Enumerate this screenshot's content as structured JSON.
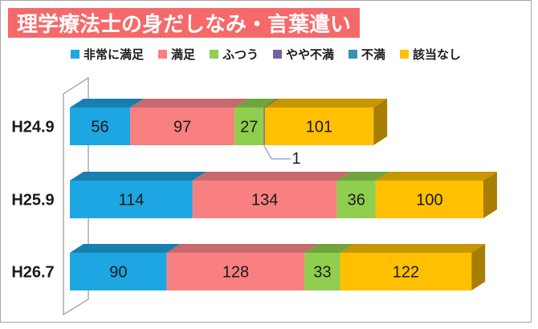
{
  "title": {
    "text": "理学療法士の身だしなみ・言葉遣い",
    "bg_color": "#F5696B",
    "text_color": "#FFFFFF"
  },
  "legend": {
    "items": [
      {
        "label": "非常に満足",
        "color": "#1EA6E2"
      },
      {
        "label": "満足",
        "color": "#F88081"
      },
      {
        "label": "ふつう",
        "color": "#8FCE4E"
      },
      {
        "label": "やや不満",
        "color": "#7560A5"
      },
      {
        "label": "不満",
        "color": "#3690B0"
      },
      {
        "label": "該当なし",
        "color": "#FEC000"
      }
    ]
  },
  "chart_data": {
    "type": "bar",
    "orientation": "horizontal",
    "stacked": true,
    "style": "3d",
    "grid": false,
    "axis_labels_hidden": true,
    "legend_position": "top",
    "categories": [
      "H24.9",
      "H25.9",
      "H26.7"
    ],
    "series": [
      {
        "name": "非常に満足",
        "color": "#1EA6E2",
        "top_color": "#177FB0",
        "values": [
          56,
          114,
          90
        ]
      },
      {
        "name": "満足",
        "color": "#F88081",
        "top_color": "#C66A6E",
        "values": [
          97,
          134,
          128
        ]
      },
      {
        "name": "ふつう",
        "color": "#8FCE4E",
        "top_color": "#71A43C",
        "values": [
          27,
          36,
          33
        ]
      },
      {
        "name": "やや不満",
        "color": "#7560A5",
        "top_color": "#594783",
        "values": [
          1,
          0,
          0
        ]
      },
      {
        "name": "不満",
        "color": "#3690B0",
        "top_color": "#2B7290",
        "values": [
          0,
          0,
          0
        ]
      },
      {
        "name": "該当なし",
        "color": "#FEC000",
        "top_color": "#C79700",
        "side_color": "#A87E00",
        "values": [
          101,
          100,
          122
        ]
      }
    ],
    "annotations": [
      {
        "text": "1",
        "series": "やや不満",
        "category": "H24.9",
        "callout_color": "#8FAADC"
      }
    ],
    "value_label_color": "#1A1A1A",
    "wall_color": "#9E9E9E"
  }
}
